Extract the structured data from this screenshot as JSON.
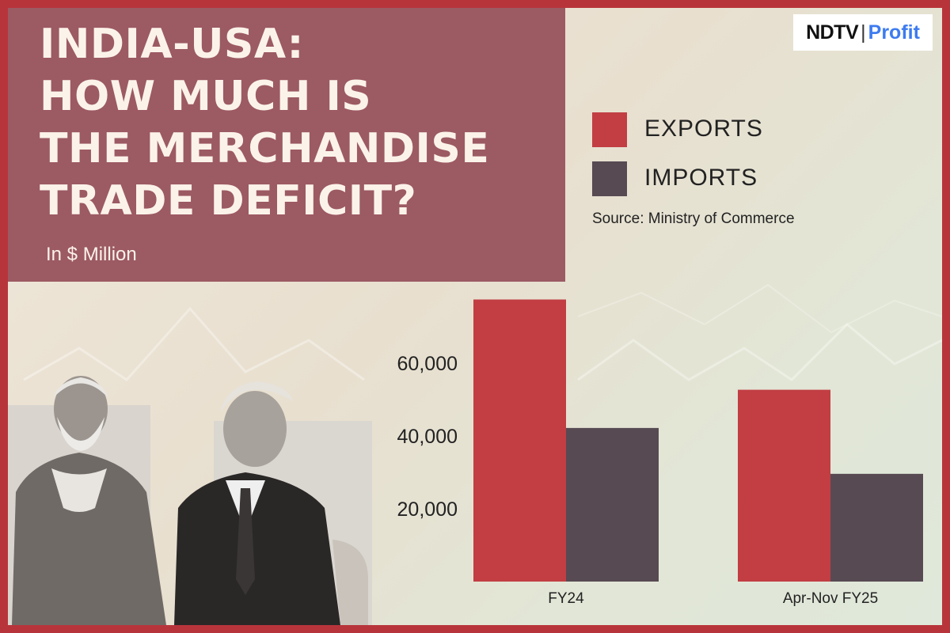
{
  "headline": {
    "lines": [
      "INDIA-USA:",
      "HOW MUCH IS",
      "THE MERCHANDISE",
      "TRADE DEFICIT?"
    ],
    "unit": "In $ Million"
  },
  "brand": {
    "left": "NDTV",
    "right": "Profit"
  },
  "legend": {
    "exports_label": "EXPORTS",
    "imports_label": "IMPORTS",
    "exports_color": "#c23e43",
    "imports_color": "#574a53"
  },
  "source": "Source: Ministry of Commerce",
  "colors": {
    "border": "#b8343b",
    "title_panel": "#9c5a63"
  },
  "chart_data": {
    "type": "bar",
    "categories": [
      "FY24",
      "Apr-Nov FY25"
    ],
    "series": [
      {
        "name": "EXPORTS",
        "values": [
          77500,
          52700
        ]
      },
      {
        "name": "IMPORTS",
        "values": [
          42200,
          29600
        ]
      }
    ],
    "yticks": [
      20000,
      40000,
      60000
    ],
    "ytick_labels": [
      "20,000",
      "40,000",
      "60,000"
    ],
    "ylim": [
      0,
      80000
    ],
    "xlabel": "",
    "ylabel": "",
    "grid": false
  }
}
